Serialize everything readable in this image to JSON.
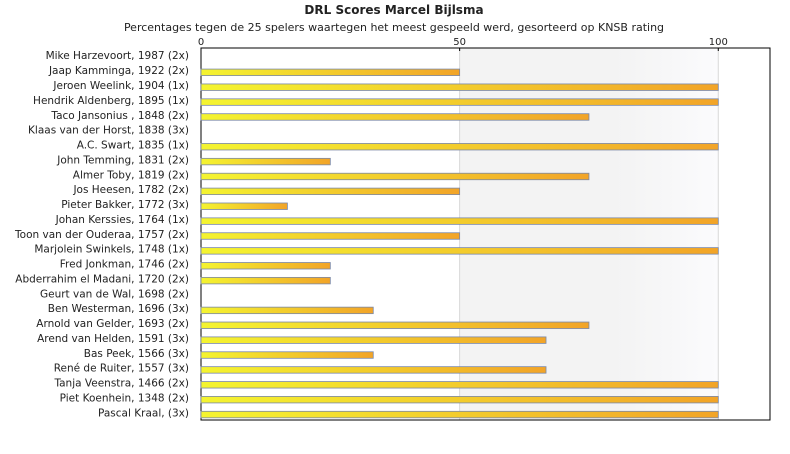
{
  "chart_data": {
    "type": "bar",
    "orientation": "horizontal",
    "title": "DRL Scores Marcel Bijlsma",
    "subtitle": "Percentages tegen de 25 spelers waartegen het meest gespeeld werd, gesorteerd op KNSB rating",
    "xlim": [
      0,
      110
    ],
    "xticks": [
      0,
      50,
      100
    ],
    "grid": true,
    "legend": "none",
    "categories": [
      "Mike Harzevoort, 1987 (2x)",
      "Jaap Kamminga, 1922 (2x)",
      "Jeroen Weelink, 1904 (1x)",
      "Hendrik Aldenberg, 1895 (1x)",
      "Taco Jansonius , 1848 (2x)",
      "Klaas van der Horst, 1838 (3x)",
      "A.C. Swart, 1835 (1x)",
      "John Temming, 1831 (2x)",
      "Almer Toby, 1819 (2x)",
      "Jos Heesen, 1782 (2x)",
      "Pieter Bakker, 1772 (3x)",
      "Johan Kerssies, 1764 (1x)",
      "Toon van der Ouderaa, 1757 (2x)",
      "Marjolein Swinkels, 1748 (1x)",
      "Fred Jonkman, 1746 (2x)",
      "Abderrahim el Madani, 1720 (2x)",
      "Geurt van de Wal, 1698 (2x)",
      "Ben Westerman, 1696 (3x)",
      "Arnold van Gelder, 1693 (2x)",
      "Arend van Helden, 1591 (3x)",
      "Bas Peek, 1566 (3x)",
      "René de Ruiter, 1557 (3x)",
      "Tanja Veenstra, 1466 (2x)",
      "Piet Koenhein, 1348 (2x)",
      "Pascal Kraal,  (3x)"
    ],
    "values": [
      0,
      50,
      100,
      100,
      75,
      0,
      100,
      25,
      75,
      50,
      16.7,
      100,
      50,
      100,
      25,
      25,
      0,
      33.3,
      75,
      66.7,
      33.3,
      66.7,
      100,
      100,
      100
    ],
    "colors": {
      "bar_start": "#f4f430",
      "bar_end": "#f2a428",
      "bar_stroke": "#7a88a8",
      "band": "#f3f3f3",
      "grid": "#d8d8d8",
      "axis": "#000000"
    }
  }
}
